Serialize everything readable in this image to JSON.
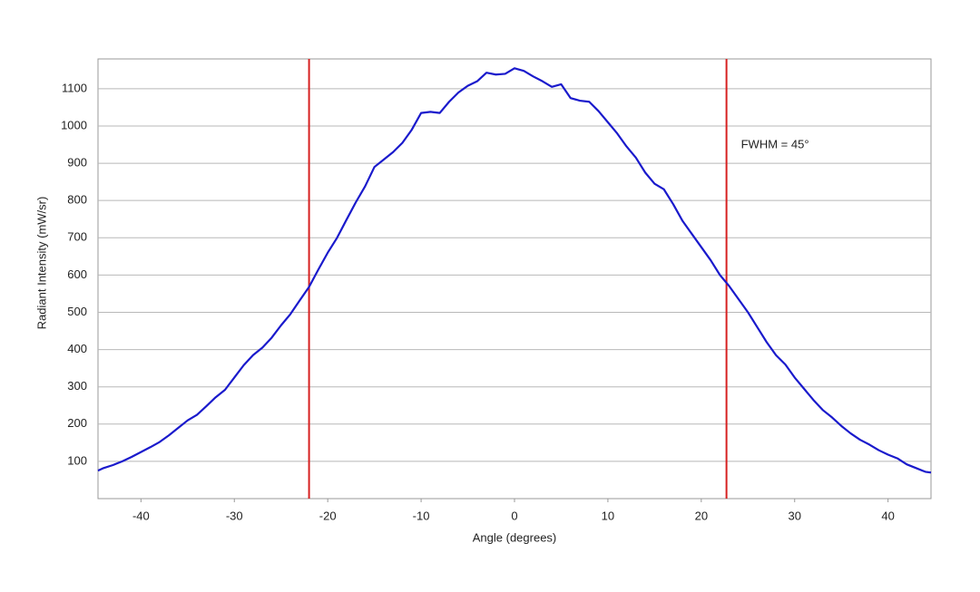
{
  "chart_data": {
    "type": "line",
    "x_label": "Angle (degrees)",
    "y_label": "Radiant Intensity (mW/sr)",
    "annotation": "FWHM = 45°",
    "x": [
      -44.6,
      -44,
      -43,
      -42,
      -41,
      -40,
      -39,
      -38,
      -37,
      -36,
      -35,
      -34,
      -33,
      -32,
      -31,
      -30,
      -29,
      -28,
      -27,
      -26,
      -25,
      -24,
      -23,
      -22,
      -21,
      -20,
      -19,
      -18,
      -17,
      -16,
      -15,
      -14,
      -13,
      -12,
      -11,
      -10,
      -9,
      -8,
      -7,
      -6,
      -5,
      -4,
      -3,
      -2,
      -1,
      0,
      1,
      2,
      3,
      4,
      5,
      6,
      7,
      8,
      9,
      10,
      11,
      12,
      13,
      14,
      15,
      16,
      17,
      18,
      19,
      20,
      21,
      22,
      23,
      24,
      25,
      26,
      27,
      28,
      29,
      30,
      31,
      32,
      33,
      34,
      35,
      36,
      37,
      38,
      39,
      40,
      41,
      42,
      43,
      44,
      44.6
    ],
    "series": [
      {
        "name": "Radiant Intensity",
        "color": "#1a1acc",
        "values": [
          75,
          82,
          90,
          100,
          112,
          125,
          138,
          152,
          170,
          190,
          210,
          225,
          248,
          272,
          292,
          325,
          358,
          385,
          405,
          432,
          465,
          495,
          532,
          568,
          615,
          660,
          700,
          748,
          795,
          838,
          890,
          910,
          930,
          955,
          990,
          1035,
          1038,
          1035,
          1065,
          1090,
          1108,
          1120,
          1143,
          1138,
          1140,
          1155,
          1148,
          1133,
          1120,
          1105,
          1112,
          1075,
          1068,
          1065,
          1040,
          1010,
          980,
          945,
          915,
          875,
          845,
          830,
          790,
          745,
          710,
          675,
          640,
          600,
          570,
          535,
          500,
          460,
          420,
          385,
          360,
          325,
          295,
          265,
          238,
          218,
          195,
          175,
          158,
          145,
          130,
          118,
          108,
          92,
          82,
          72,
          70
        ]
      }
    ],
    "vlines": [
      -22,
      22.7
    ],
    "vline_color": "#d62020",
    "xlim": [
      -44.6,
      44.6
    ],
    "ylim": [
      0,
      1180
    ],
    "xticks": [
      -40,
      -30,
      -20,
      -10,
      0,
      10,
      20,
      30,
      40
    ],
    "yticks": [
      100,
      200,
      300,
      400,
      500,
      600,
      700,
      800,
      900,
      1000,
      1100
    ],
    "grid": true
  }
}
